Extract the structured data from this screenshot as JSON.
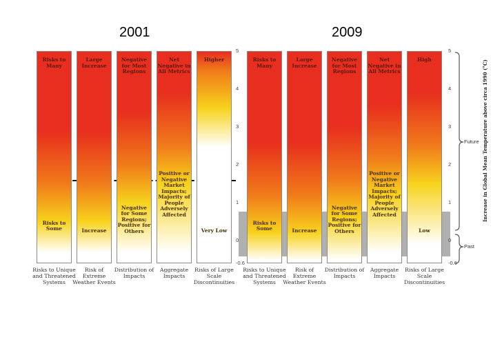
{
  "chart_data": [
    {
      "type": "heatmap",
      "year": "2001",
      "ylabel": "Increase in Global Mean Temperature above circa 1990 (°C)",
      "ylim": [
        -0.6,
        5
      ],
      "yticks": [
        "5",
        "4",
        "3",
        "2",
        "1",
        "0",
        "-0.6"
      ],
      "threshold_line_at": 1.4,
      "columns": [
        {
          "top": "Risks to Many",
          "mid": "",
          "low": "Risks to Some",
          "label": "Risks to Unique and Threatened Systems",
          "red_top": 5,
          "yellow_at": 0.5,
          "white_from": 0
        },
        {
          "top": "Large Increase",
          "mid": "",
          "low": "Increase",
          "label": "Risk of Extreme Weather Events",
          "red_top": 5,
          "yellow_at": 0.5,
          "white_from": 0
        },
        {
          "top": "Negative for Most Regions",
          "mid": "Negative for Some Regions; Positive for Others",
          "low": "",
          "label": "Distribution of Impacts",
          "red_top": 5,
          "yellow_at": 1,
          "white_from": 0
        },
        {
          "top": "Net Negative in All Metrics",
          "mid": "Positive or Negative Market Impacts; Majority of People Adversely Affected",
          "low": "",
          "label": "Aggregate Impacts",
          "red_top": 5,
          "yellow_at": 1.5,
          "white_from": 0
        },
        {
          "top": "Higher",
          "mid": "",
          "low": "Very Low",
          "label": "Risks of Large Scale Discontinuities",
          "red_top": 5,
          "yellow_at": 3.5,
          "white_from": 2.8
        }
      ]
    },
    {
      "type": "heatmap",
      "year": "2009",
      "ylabel": "Increase in Global Mean Temperature above circa 1990 (°C)",
      "ylim": [
        -0.6,
        5
      ],
      "yticks": [
        "5",
        "4",
        "3",
        "2",
        "1",
        "0",
        "-0.6"
      ],
      "past_band": [
        -0.6,
        0.6
      ],
      "columns": [
        {
          "top": "Risks to Many",
          "mid": "",
          "low": "Risks to Some",
          "label": "Risks to Unique and Threatened Systems",
          "red_top": 5,
          "yellow_at": 0.2,
          "white_from": -0.2
        },
        {
          "top": "Large Increase",
          "mid": "",
          "low": "Increase",
          "label": "Risk of Extreme Weather Events",
          "red_top": 5,
          "yellow_at": 0.2,
          "white_from": -0.2
        },
        {
          "top": "Negative for Most Regions",
          "mid": "Negative for Some Regions; Positive for Others",
          "low": "",
          "label": "Distribution of Impacts",
          "red_top": 5,
          "yellow_at": 0.6,
          "white_from": -0.2
        },
        {
          "top": "Net Negative in All Metrics",
          "mid": "Positive or Negative Market Impacts; Majority of People Adversely Affected",
          "low": "",
          "label": "Aggregate Impacts",
          "red_top": 5,
          "yellow_at": 1.2,
          "white_from": 0
        },
        {
          "top": "High",
          "mid": "",
          "low": "Low",
          "label": "Risks of Large Scale Discontinuities",
          "red_top": 5,
          "yellow_at": 1.5,
          "white_from": 0.2
        }
      ],
      "brackets": [
        "Future",
        "Past"
      ]
    }
  ],
  "colors": {
    "red": "#e82e1e",
    "orange": "#f07a1a",
    "yellow": "#f7d21c",
    "white": "#ffffff",
    "past_gray": "#808080"
  }
}
